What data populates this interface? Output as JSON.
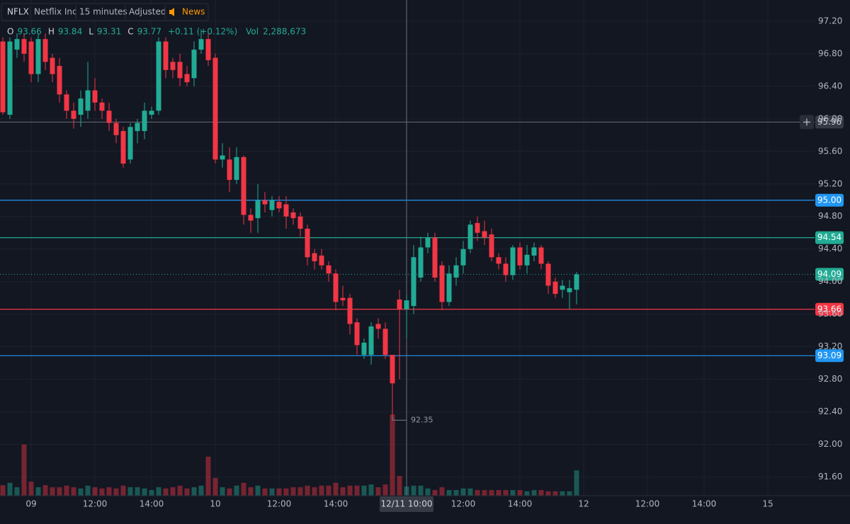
{
  "chart_data": {
    "type": "candlestick",
    "header": {
      "symbol": "NFLX",
      "name": "Netflix Inc",
      "interval": "15 minutes",
      "adjustment": "Adjusted",
      "news": "News"
    },
    "legend": {
      "labels": [
        "O",
        "H",
        "L",
        "C"
      ],
      "change": "+0.11 (+0.12%)",
      "volume_name": "Vol",
      "volume_label": "2,288,673"
    },
    "colors": {
      "up": "#22ab94",
      "down": "#f23645"
    },
    "categories": [
      null,
      null,
      null,
      null,
      "09",
      null,
      null,
      null,
      null,
      null,
      null,
      null,
      null,
      "12:00",
      null,
      null,
      null,
      null,
      null,
      null,
      null,
      "14:00",
      null,
      null,
      null,
      null,
      null,
      null,
      null,
      null,
      "10",
      null,
      null,
      null,
      null,
      null,
      null,
      null,
      null,
      "12:00",
      null,
      null,
      null,
      null,
      null,
      null,
      null,
      "14:00",
      null,
      null,
      null,
      null,
      null,
      null,
      null,
      null,
      null,
      "12/11 10:00",
      null,
      null,
      null,
      null,
      null,
      null,
      null,
      "12:00",
      null,
      null,
      null,
      null,
      null,
      null,
      null,
      "14:00",
      null,
      null,
      null,
      null,
      null,
      null,
      null,
      null,
      "12",
      null,
      null,
      null,
      null,
      null,
      null,
      null,
      null,
      "12:00",
      null,
      null,
      null,
      null,
      null,
      null,
      null,
      "14:00",
      null,
      null,
      null,
      null,
      null,
      null,
      null,
      null,
      "15",
      null
    ],
    "candles": {
      "open": [
        96.95,
        96.05,
        96.85,
        96.98,
        96.95,
        96.55,
        96.98,
        96.75,
        96.65,
        96.3,
        96.1,
        96.05,
        96.1,
        96.35,
        96.2,
        96.1,
        95.95,
        95.85,
        95.5,
        95.85,
        95.85,
        96.05,
        96.1,
        96.95,
        96.7,
        96.7,
        96.55,
        96.5,
        96.85,
        96.98,
        96.75,
        95.5,
        95.5,
        95.25,
        95.53,
        94.82,
        94.78,
        95.0,
        94.88,
        94.98,
        94.95,
        94.85,
        94.8,
        94.65,
        94.35,
        94.32,
        94.2,
        94.1,
        93.8,
        93.8,
        93.5,
        93.1,
        93.1,
        93.48,
        93.42,
        93.1,
        93.78,
        93.66,
        93.7,
        94.05,
        94.42,
        94.54,
        94.2,
        93.75,
        94.05,
        94.2,
        94.4,
        94.72,
        94.62,
        94.58,
        94.3,
        94.22,
        94.08,
        94.42,
        94.2,
        94.32,
        94.42,
        94.22,
        94.0,
        93.9,
        93.87,
        93.9,
        null,
        null,
        null,
        null,
        null,
        null,
        null,
        null,
        null,
        null,
        null,
        null,
        null,
        null,
        null,
        null,
        null,
        null,
        null,
        null,
        null,
        null,
        null,
        null,
        null,
        null,
        null,
        null
      ],
      "high": [
        97.0,
        97.0,
        97.05,
        97.05,
        97.0,
        97.05,
        97.05,
        96.8,
        96.75,
        96.35,
        96.2,
        96.35,
        96.7,
        96.5,
        96.25,
        96.2,
        96.0,
        95.9,
        95.95,
        96.0,
        96.2,
        96.15,
        97.0,
        97.0,
        96.75,
        96.8,
        96.65,
        96.95,
        97.1,
        97.05,
        96.8,
        95.7,
        95.65,
        95.65,
        95.55,
        94.9,
        95.2,
        95.1,
        95.05,
        95.05,
        95.05,
        94.9,
        94.85,
        94.7,
        94.4,
        94.4,
        94.25,
        94.15,
        93.95,
        93.85,
        93.55,
        93.3,
        93.5,
        93.55,
        93.5,
        93.1,
        93.9,
        93.84,
        94.45,
        94.55,
        94.6,
        94.6,
        94.25,
        94.2,
        94.3,
        94.5,
        94.75,
        94.8,
        94.75,
        94.65,
        94.35,
        94.3,
        94.45,
        94.48,
        94.45,
        94.48,
        94.45,
        94.25,
        94.05,
        94.02,
        94.02,
        94.12,
        null,
        null,
        null,
        null,
        null,
        null,
        null,
        null,
        null,
        null,
        null,
        null,
        null,
        null,
        null,
        null,
        null,
        null,
        null,
        null,
        null,
        null,
        null,
        null,
        null,
        null,
        null,
        null
      ],
      "low": [
        96.05,
        96.0,
        96.75,
        96.7,
        96.45,
        96.45,
        96.6,
        96.45,
        96.2,
        96.0,
        95.88,
        95.9,
        96.0,
        96.1,
        96.0,
        95.85,
        95.7,
        95.4,
        95.45,
        95.7,
        95.75,
        96.0,
        96.05,
        96.5,
        96.5,
        96.4,
        96.4,
        96.4,
        96.8,
        96.65,
        95.45,
        95.4,
        95.1,
        95.2,
        94.7,
        94.6,
        94.6,
        94.85,
        94.8,
        94.85,
        94.65,
        94.7,
        94.55,
        94.2,
        94.15,
        94.15,
        94.0,
        93.65,
        93.7,
        93.35,
        93.1,
        93.05,
        92.98,
        93.3,
        93.05,
        92.35,
        92.8,
        93.31,
        93.6,
        94.0,
        94.35,
        94.0,
        93.65,
        93.7,
        93.95,
        94.1,
        94.35,
        94.5,
        94.45,
        94.25,
        94.15,
        94.0,
        94.02,
        94.15,
        94.1,
        94.25,
        94.15,
        93.85,
        93.8,
        93.8,
        93.66,
        93.72,
        null,
        null,
        null,
        null,
        null,
        null,
        null,
        null,
        null,
        null,
        null,
        null,
        null,
        null,
        null,
        null,
        null,
        null,
        null,
        null,
        null,
        null,
        null,
        null,
        null,
        null,
        null,
        null
      ],
      "close": [
        96.08,
        96.95,
        96.98,
        96.8,
        96.55,
        96.98,
        96.7,
        96.55,
        96.3,
        96.1,
        96.0,
        96.25,
        96.35,
        96.2,
        96.1,
        95.95,
        95.8,
        95.45,
        95.9,
        95.95,
        96.1,
        96.1,
        96.95,
        96.6,
        96.6,
        96.5,
        96.45,
        96.85,
        96.98,
        96.72,
        95.5,
        95.55,
        95.25,
        95.53,
        94.82,
        94.75,
        95.0,
        94.95,
        95.0,
        94.9,
        94.8,
        94.78,
        94.65,
        94.3,
        94.25,
        94.2,
        94.1,
        93.75,
        93.77,
        93.48,
        93.22,
        93.25,
        93.45,
        93.42,
        93.1,
        92.75,
        93.66,
        93.77,
        94.3,
        94.42,
        94.54,
        94.05,
        93.75,
        94.1,
        94.2,
        94.4,
        94.7,
        94.6,
        94.54,
        94.3,
        94.22,
        94.08,
        94.42,
        94.2,
        94.33,
        94.42,
        94.22,
        93.95,
        93.85,
        93.95,
        93.92,
        94.09,
        null,
        null,
        null,
        null,
        null,
        null,
        null,
        null,
        null,
        null,
        null,
        null,
        null,
        null,
        null,
        null,
        null,
        null,
        null,
        null,
        null,
        null,
        null,
        null,
        null,
        null,
        null,
        null
      ]
    },
    "volume": [
      2600000,
      3200000,
      2100000,
      12700000,
      3500000,
      2100000,
      2600000,
      2100000,
      2100000,
      2500000,
      2100000,
      1800000,
      2500000,
      2100000,
      1800000,
      2100000,
      1800000,
      2500000,
      2100000,
      2100000,
      1800000,
      1400000,
      2100000,
      1800000,
      2100000,
      2500000,
      1800000,
      2100000,
      2500000,
      9700000,
      4400000,
      2100000,
      1800000,
      2500000,
      3200000,
      2100000,
      2500000,
      1800000,
      1800000,
      1800000,
      1800000,
      2100000,
      2100000,
      2500000,
      2100000,
      2500000,
      2500000,
      3200000,
      2100000,
      2500000,
      2500000,
      2500000,
      2800000,
      2100000,
      2800000,
      20200000,
      4900000,
      2288673,
      2500000,
      2500000,
      1800000,
      1400000,
      2100000,
      1400000,
      1400000,
      1800000,
      1800000,
      1400000,
      1400000,
      1400000,
      1400000,
      1400000,
      1400000,
      1400000,
      1100000,
      1400000,
      1400000,
      1100000,
      1100000,
      1100000,
      1100000,
      6300000,
      null,
      null,
      null,
      null,
      null,
      null,
      null,
      null,
      null,
      null,
      null,
      null,
      null,
      null,
      null,
      null,
      null,
      null,
      null,
      null,
      null,
      null,
      null,
      null,
      null,
      null,
      null,
      null
    ],
    "ylim": [
      91.37,
      97.46
    ],
    "yticks": [
      {
        "value": 97.2,
        "label": "97.20"
      },
      {
        "value": 96.8,
        "label": "96.80"
      },
      {
        "value": 96.4,
        "label": "96.40"
      },
      {
        "value": 96.0,
        "label": "96.00"
      },
      {
        "value": 95.6,
        "label": "95.60"
      },
      {
        "value": 95.2,
        "label": "95.20"
      },
      {
        "value": 94.8,
        "label": "94.80"
      },
      {
        "value": 94.4,
        "label": "94.40"
      },
      {
        "value": 94.0,
        "label": "94.00"
      },
      {
        "value": 93.6,
        "label": "93.60"
      },
      {
        "value": 93.2,
        "label": "93.20"
      },
      {
        "value": 92.8,
        "label": "92.80"
      },
      {
        "value": 92.4,
        "label": "92.40"
      },
      {
        "value": 92.0,
        "label": "92.00"
      },
      {
        "value": 91.6,
        "label": "91.60"
      }
    ],
    "hlines": [
      {
        "value": 95.0,
        "label": "95.00",
        "color": "#2196f3"
      },
      {
        "value": 94.54,
        "label": "94.54",
        "color": "#22ab94"
      },
      {
        "value": 93.66,
        "label": "93.66",
        "color": "#f23645"
      },
      {
        "value": 93.09,
        "label": "93.09",
        "color": "#2196f3"
      }
    ],
    "crosshair_price": {
      "value": 95.96,
      "label": "95.96"
    }
  }
}
